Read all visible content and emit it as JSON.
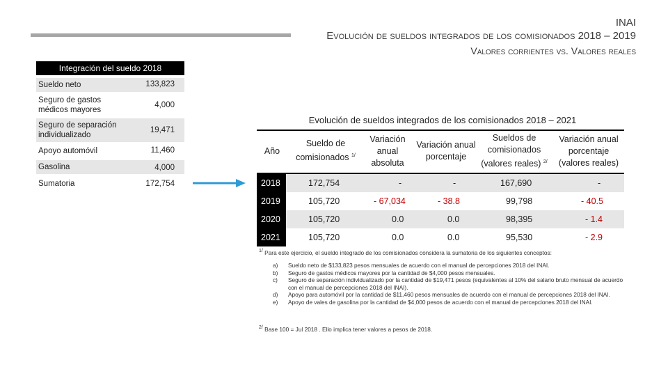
{
  "header": {
    "org": "INAI",
    "title": "Evolución de sueldos integrados de los comisionados 2018 – 2019",
    "subtitle": "Valores corrientes vs. Valores reales",
    "bar_color": "#a6a6a6"
  },
  "left_table": {
    "title": "Integración del sueldo 2018",
    "rows": [
      {
        "label": "Sueldo neto",
        "value": "133,823"
      },
      {
        "label": "Seguro de gastos médicos mayores",
        "value": "4,000"
      },
      {
        "label": "Seguro de separación individualizado",
        "value": "19,471"
      },
      {
        "label": "Apoyo automóvil",
        "value": "11,460"
      },
      {
        "label": "Gasolina",
        "value": "4,000"
      },
      {
        "label": "Sumatoria",
        "value": "172,754"
      }
    ]
  },
  "arrow": {
    "icon": "right-arrow-icon",
    "color": "#2e9bd6"
  },
  "right_table": {
    "title": "Evolución de sueldos integrados de los comisionados 2018 – 2021",
    "headers": {
      "year": "Año",
      "salary": "Sueldo de comisionados",
      "salary_sup": "1/",
      "var_abs": "Variación anual absoluta",
      "var_pct": "Variación anual porcentaje",
      "real": "Sueldos de comisionados (valores reales)",
      "real_sup": "2/",
      "var_real": "Variación anual porcentaje (valores reales)"
    },
    "rows": [
      {
        "year": "2018",
        "salary": "172,754",
        "var_abs": "-",
        "var_pct": "-",
        "real": "167,690",
        "var_real": "-"
      },
      {
        "year": "2019",
        "salary": "105,720",
        "var_abs": "- 67,034",
        "var_pct": "- 38.8",
        "real": "99,798",
        "var_real": "- 40.5"
      },
      {
        "year": "2020",
        "salary": "105,720",
        "var_abs": "0.0",
        "var_pct": "0.0",
        "real": "98,395",
        "var_real": "- 1.4"
      },
      {
        "year": "2021",
        "salary": "105,720",
        "var_abs": "0.0",
        "var_pct": "0.0",
        "real": "95,530",
        "var_real": "- 2.9"
      }
    ],
    "negative_color": "#c00000"
  },
  "notes": {
    "note1_mark": "1/",
    "note1_text": "Para este ejercicio, el sueldo integrado de los comisionados considera la sumatoria de los siguientes conceptos:",
    "items": [
      {
        "key": "a)",
        "text": "Sueldo neto de $133,823 pesos mensuales de acuerdo con el manual de percepciones 2018 del INAI."
      },
      {
        "key": "b)",
        "text": "Seguro de gastos médicos mayores por la cantidad de $4,000 pesos mensuales."
      },
      {
        "key": "c)",
        "text": "Seguro de separación individualizado por la cantidad de $19,471 pesos (equivalentes al 10% del salario bruto mensual de acuerdo con el manual de percepciones 2018 del INAI)."
      },
      {
        "key": "d)",
        "text": "Apoyo para automóvil por la cantidad de $11,460 pesos mensuales de acuerdo con el manual de percepciones 2018 del INAI."
      },
      {
        "key": "e)",
        "text": "Apoyo de vales de gasolina por la cantidad de $4,000 pesos de acuerdo con el manual de percepciones 2018 del INAI."
      }
    ],
    "note2_mark": "2/",
    "note2_text": "Base 100 = Jul 2018 . Ello implica tener valores a pesos de 2018."
  }
}
